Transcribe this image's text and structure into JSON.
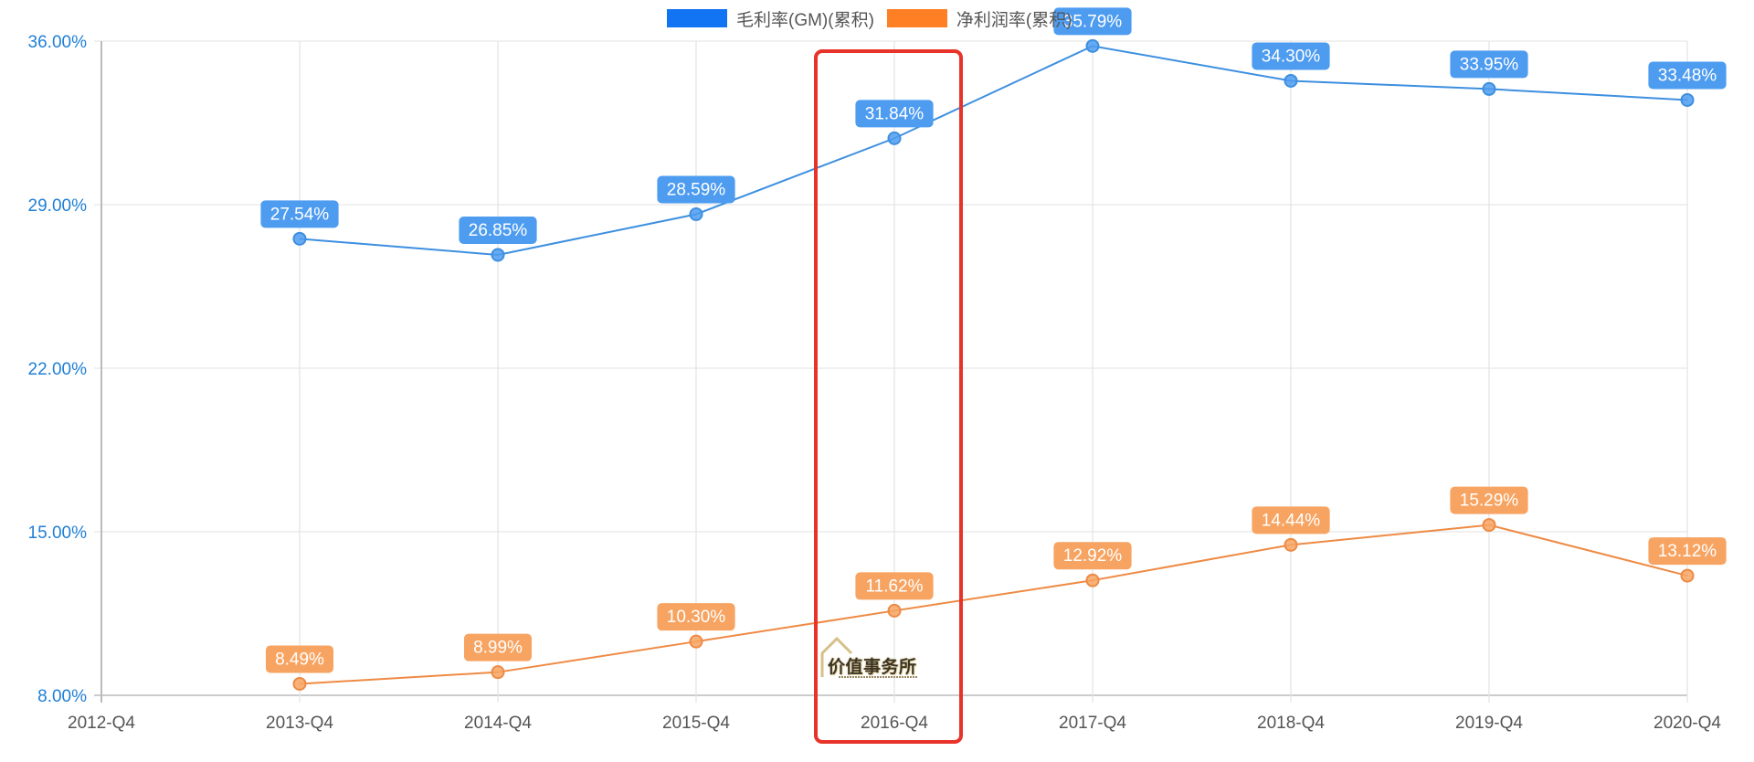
{
  "legend": {
    "items": [
      {
        "label": "毛利率(GM)(累积)",
        "color": "#1274f2"
      },
      {
        "label": "净利润率(累积)",
        "color": "#ff7f24"
      }
    ]
  },
  "watermark": {
    "text": "价值事务所"
  },
  "highlight": {
    "category": "2016-Q4",
    "color": "#e8332a"
  },
  "chart_data": {
    "type": "line",
    "title": "",
    "xlabel": "",
    "ylabel": "",
    "categories": [
      "2012-Q4",
      "2013-Q4",
      "2014-Q4",
      "2015-Q4",
      "2016-Q4",
      "2017-Q4",
      "2018-Q4",
      "2019-Q4",
      "2020-Q4"
    ],
    "y_ticks": [
      "8.00%",
      "15.00%",
      "22.00%",
      "29.00%",
      "36.00%"
    ],
    "y_tick_values": [
      8,
      15,
      22,
      29,
      36
    ],
    "ylim": [
      8,
      36
    ],
    "grid": true,
    "legend_position": "top",
    "series": [
      {
        "name": "毛利率(GM)(累积)",
        "color": "#3d8fe0",
        "label_bg": "#4e9cf0",
        "values": [
          null,
          27.54,
          26.85,
          28.59,
          31.84,
          35.79,
          34.3,
          33.95,
          33.48
        ],
        "labels": [
          "",
          "27.54%",
          "26.85%",
          "28.59%",
          "31.84%",
          "35.79%",
          "34.30%",
          "33.95%",
          "33.48%"
        ]
      },
      {
        "name": "净利润率(累积)",
        "color": "#ee8a44",
        "label_bg": "#f7a462",
        "values": [
          null,
          8.49,
          8.99,
          10.3,
          11.62,
          12.92,
          14.44,
          15.29,
          13.12
        ],
        "labels": [
          "",
          "8.49%",
          "8.99%",
          "10.30%",
          "11.62%",
          "12.92%",
          "14.44%",
          "15.29%",
          "13.12%"
        ]
      }
    ]
  }
}
